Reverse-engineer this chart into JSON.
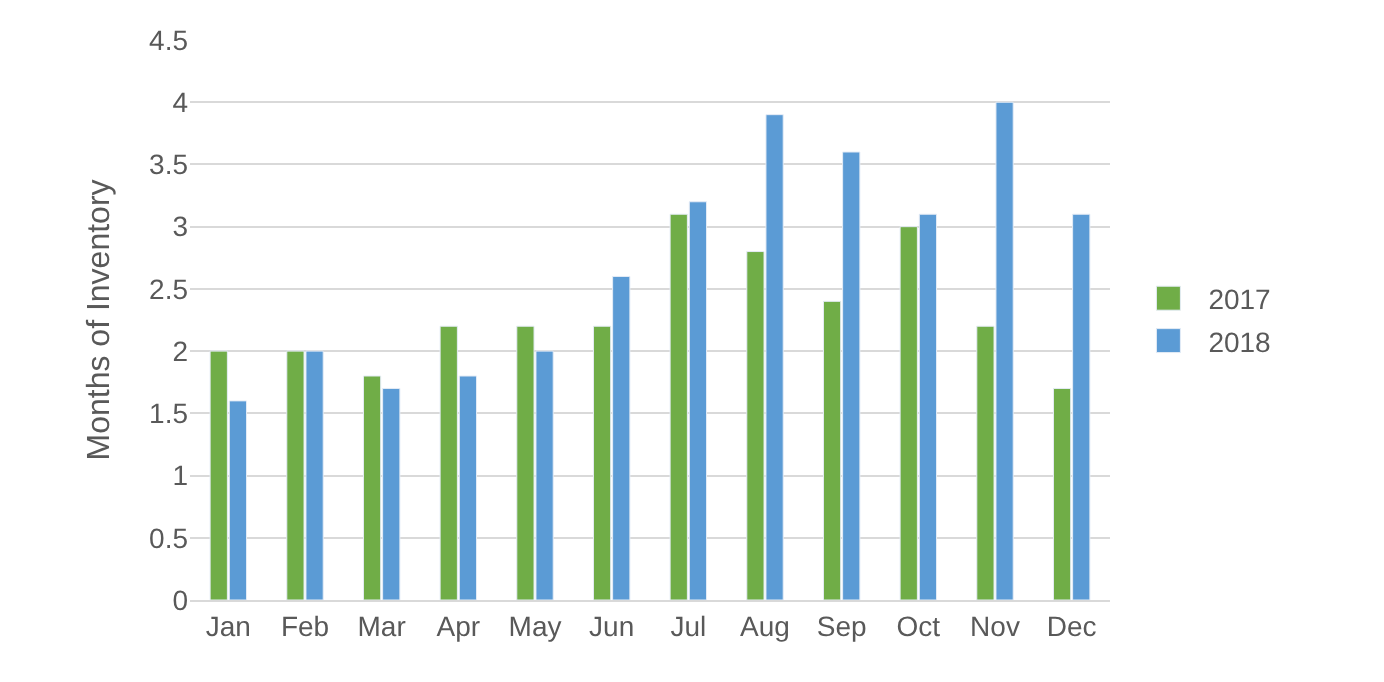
{
  "chart_data": {
    "type": "bar",
    "ylabel": "Months of Inventory",
    "categories": [
      "Jan",
      "Feb",
      "Mar",
      "Apr",
      "May",
      "Jun",
      "Jul",
      "Aug",
      "Sep",
      "Oct",
      "Nov",
      "Dec"
    ],
    "series": [
      {
        "name": "2017",
        "color": "#70ad47",
        "values": [
          2.0,
          2.0,
          1.8,
          2.2,
          2.2,
          2.2,
          3.1,
          2.8,
          2.4,
          3.0,
          2.2,
          1.7
        ]
      },
      {
        "name": "2018",
        "color": "#5b9bd5",
        "values": [
          1.6,
          2.0,
          1.7,
          1.8,
          2.0,
          2.6,
          3.2,
          3.9,
          3.6,
          3.1,
          4.0,
          3.1
        ]
      }
    ],
    "ylim": [
      0,
      4.5
    ],
    "yticks": [
      0,
      0.5,
      1,
      1.5,
      2,
      2.5,
      3,
      3.5,
      4,
      4.5
    ],
    "grid": "y",
    "legend": "right"
  }
}
